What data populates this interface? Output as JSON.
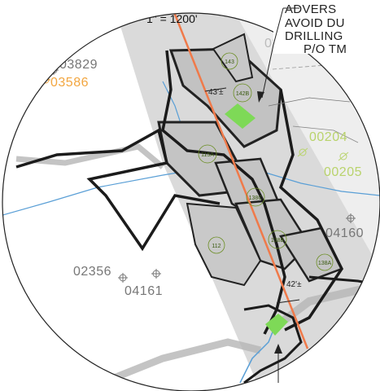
{
  "scale": {
    "text": "1\" = 1200'"
  },
  "note": {
    "lines": [
      "ADVERS",
      "AVOID DU",
      "DRILLING",
      "P/O TM"
    ]
  },
  "wells": {
    "w03829": {
      "text": "03829",
      "color": "#777777"
    },
    "w03586": {
      "text": "03586",
      "color": "#f2a640"
    },
    "w00204": {
      "text": "00204",
      "color": "#b9d36c"
    },
    "w00205": {
      "text": "00205",
      "color": "#b9d36c"
    },
    "w04160": {
      "text": "04160",
      "color": "#777777"
    },
    "w02356": {
      "text": "02356",
      "color": "#777777"
    },
    "w04161": {
      "text": "04161",
      "color": "#777777"
    },
    "w03_partial": {
      "text": "03",
      "color": "#bbbbbb"
    }
  },
  "parcels": {
    "p143": "143",
    "p142b": "142B",
    "p115a": "115A",
    "p138c": "138C",
    "p138b": "138B",
    "p138a": "138A",
    "p112": "112"
  },
  "dimensions": {
    "top": "43'±",
    "bottom": "42'±"
  },
  "colors": {
    "route_line": "#f07a4a",
    "drill_pad": "#7ed957",
    "corridor": "#cfcfcf",
    "parcel_fill": "#c4c4c4",
    "water": "#5a9fd6"
  }
}
